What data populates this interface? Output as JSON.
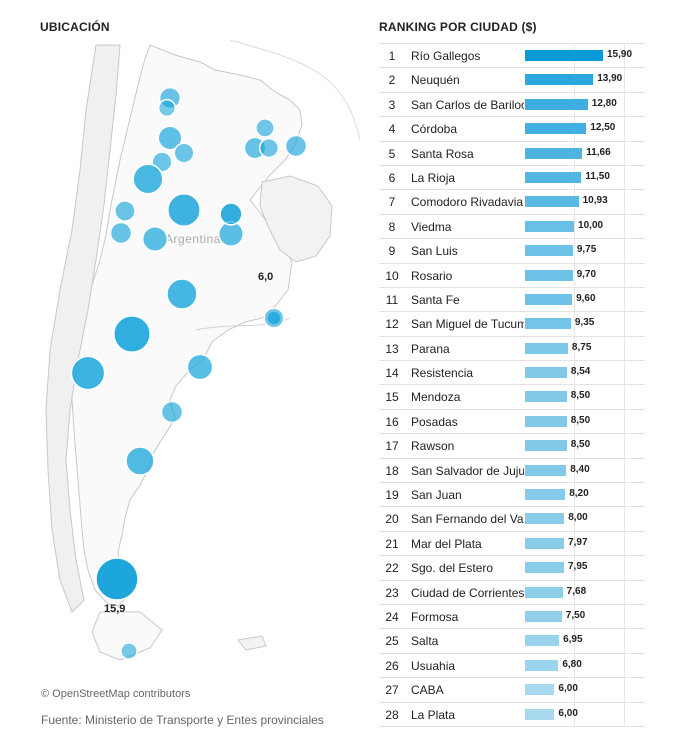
{
  "map": {
    "heading": "UBICACIÓN",
    "country_label": "Argentina",
    "label_max": "15,9",
    "label_min": "6,0",
    "attribution": "© OpenStreetMap contributors",
    "bubble_color": "#1ca6dc"
  },
  "ranking": {
    "heading": "RANKING POR CIUDAD ($)",
    "bar_color_high": "#0a9ad8",
    "bar_color_low": "#a9d9ef",
    "max_value": 15.9,
    "rows": [
      {
        "rank": "1",
        "city": "Río Gallegos",
        "value": "15,90",
        "num": 15.9
      },
      {
        "rank": "2",
        "city": "Neuquén",
        "value": "13,90",
        "num": 13.9
      },
      {
        "rank": "3",
        "city": "San Carlos de Bariloche",
        "value": "12,80",
        "num": 12.8
      },
      {
        "rank": "4",
        "city": "Córdoba",
        "value": "12,50",
        "num": 12.5
      },
      {
        "rank": "5",
        "city": "Santa Rosa",
        "value": "11,66",
        "num": 11.66
      },
      {
        "rank": "6",
        "city": "La Rioja",
        "value": "11,50",
        "num": 11.5
      },
      {
        "rank": "7",
        "city": "Comodoro Rivadavia",
        "value": "10,93",
        "num": 10.93
      },
      {
        "rank": "8",
        "city": "Viedma",
        "value": "10,00",
        "num": 10.0
      },
      {
        "rank": "9",
        "city": "San Luis",
        "value": "9,75",
        "num": 9.75
      },
      {
        "rank": "10",
        "city": "Rosario",
        "value": "9,70",
        "num": 9.7
      },
      {
        "rank": "11",
        "city": "Santa Fe",
        "value": "9,60",
        "num": 9.6
      },
      {
        "rank": "12",
        "city": "San Miguel de Tucumán",
        "value": "9,35",
        "num": 9.35
      },
      {
        "rank": "13",
        "city": "Parana",
        "value": "8,75",
        "num": 8.75
      },
      {
        "rank": "14",
        "city": "Resistencia",
        "value": "8,54",
        "num": 8.54
      },
      {
        "rank": "15",
        "city": "Mendoza",
        "value": "8,50",
        "num": 8.5
      },
      {
        "rank": "16",
        "city": "Posadas",
        "value": "8,50",
        "num": 8.5
      },
      {
        "rank": "17",
        "city": "Rawson",
        "value": "8,50",
        "num": 8.5
      },
      {
        "rank": "18",
        "city": "San Salvador de Jujuy",
        "value": "8,40",
        "num": 8.4
      },
      {
        "rank": "19",
        "city": "San Juan",
        "value": "8,20",
        "num": 8.2
      },
      {
        "rank": "20",
        "city": "San Fernando del Valle",
        "value": "8,00",
        "num": 8.0
      },
      {
        "rank": "21",
        "city": "Mar del Plata",
        "value": "7,97",
        "num": 7.97
      },
      {
        "rank": "22",
        "city": "Sgo. del Estero",
        "value": "7,95",
        "num": 7.95
      },
      {
        "rank": "23",
        "city": "Ciudad de Corrientes",
        "value": "7,68",
        "num": 7.68
      },
      {
        "rank": "24",
        "city": "Formosa",
        "value": "7,50",
        "num": 7.5
      },
      {
        "rank": "25",
        "city": "Salta",
        "value": "6,95",
        "num": 6.95
      },
      {
        "rank": "26",
        "city": "Usuahia",
        "value": "6,80",
        "num": 6.8
      },
      {
        "rank": "27",
        "city": "CABA",
        "value": "6,00",
        "num": 6.0
      },
      {
        "rank": "28",
        "city": "La Plata",
        "value": "6,00",
        "num": 6.0
      }
    ]
  },
  "footer": {
    "source": "Fuente: Ministerio de Transporte y Entes provinciales"
  }
}
